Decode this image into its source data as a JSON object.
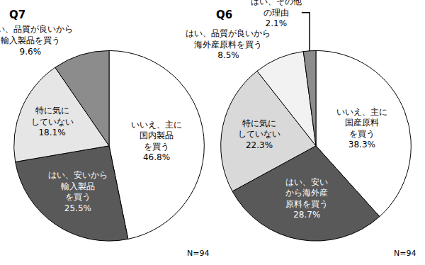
{
  "chart_data": [
    {
      "type": "pie",
      "title": "Q7",
      "annotations": [
        "N=94"
      ],
      "data_labels": true,
      "categories": [
        "いいえ、主に\n国内製品\nを買う",
        "はい、安いから\n輸入製品\nを買う",
        "特に気に\nしていない",
        "はい、品質が良いから\n輸入製品を買う"
      ],
      "values": [
        46.8,
        25.5,
        18.1,
        9.6
      ],
      "value_labels": [
        "46.8%",
        "25.5%",
        "18.1%",
        "9.6%"
      ],
      "colors": [
        "#ffffff",
        "#595959",
        "#e6e6e6",
        "#8c8c8c"
      ]
    },
    {
      "type": "pie",
      "title": "Q6",
      "annotations": [
        "N=94"
      ],
      "data_labels": true,
      "categories": [
        "いいえ、主に\n国産原料\nを買う",
        "はい、安い\nから海外産\n原料を買う",
        "特に気に\nしていない",
        "はい、品質が良いから\n海外産原料を買う",
        "はい、その他\nの理由"
      ],
      "values": [
        38.3,
        28.7,
        22.3,
        8.5,
        2.1
      ],
      "value_labels": [
        "38.3%",
        "28.7%",
        "22.3%",
        "8.5%",
        "2.1%"
      ],
      "colors": [
        "#ffffff",
        "#595959",
        "#d9d9d9",
        "#f2f2f2",
        "#8c8c8c"
      ]
    }
  ]
}
